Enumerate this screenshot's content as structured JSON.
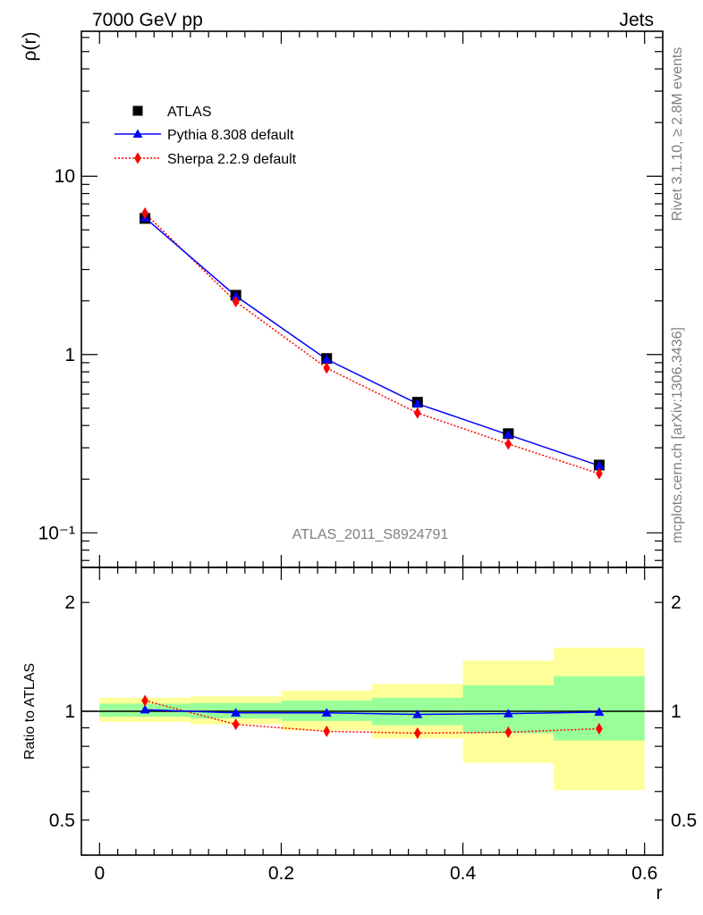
{
  "header": {
    "left": "7000 GeV pp",
    "right": "Jets"
  },
  "side_labels": {
    "rivet": "Rivet 3.1.10, ≥ 2.8M events",
    "url": "mcplots.cern.ch [arXiv:1306.3436]"
  },
  "watermark": "ATLAS_2011_S8924791",
  "chart_data": {
    "type": "line",
    "x_label": "r",
    "xlim": [
      -0.02,
      0.62
    ],
    "x_ticks": [
      {
        "v": 0,
        "label": "0"
      },
      {
        "v": 0.2,
        "label": "0.2"
      },
      {
        "v": 0.4,
        "label": "0.4"
      },
      {
        "v": 0.6,
        "label": "0.6"
      }
    ],
    "main": {
      "ylabel": "ρ(r)",
      "y_scale": "log",
      "ylim": [
        0.064,
        65
      ],
      "y_ticks": [
        {
          "v": 10,
          "label": "10"
        },
        {
          "v": 1,
          "label": "1"
        },
        {
          "v": 0.1,
          "label": "10⁻¹"
        }
      ],
      "x": [
        0.05,
        0.15,
        0.25,
        0.35,
        0.45,
        0.55
      ],
      "series": [
        {
          "name": "ATLAS",
          "style": "data",
          "color": "#000000",
          "marker": "square",
          "values": [
            5.8,
            2.15,
            0.95,
            0.54,
            0.36,
            0.24
          ]
        },
        {
          "name": "Pythia 8.308 default",
          "style": "solid",
          "color": "#0000ff",
          "marker": "triangle",
          "values": [
            5.85,
            2.13,
            0.94,
            0.53,
            0.355,
            0.238
          ]
        },
        {
          "name": "Sherpa 2.2.9 default",
          "style": "dotted",
          "color": "#ff0000",
          "marker": "diamond",
          "values": [
            6.2,
            1.98,
            0.84,
            0.47,
            0.315,
            0.215
          ]
        }
      ]
    },
    "ratio": {
      "ylabel": "Ratio to ATLAS",
      "y_scale": "log",
      "ylim": [
        0.4,
        2.5
      ],
      "y_ticks": [
        {
          "v": 2,
          "label": "2"
        },
        {
          "v": 1,
          "label": "1"
        },
        {
          "v": 0.5,
          "label": "0.5"
        }
      ],
      "bins": [
        [
          0,
          0.1
        ],
        [
          0.1,
          0.2
        ],
        [
          0.2,
          0.3
        ],
        [
          0.3,
          0.4
        ],
        [
          0.4,
          0.5
        ],
        [
          0.5,
          0.6
        ]
      ],
      "band_outer": [
        [
          0.935,
          1.09
        ],
        [
          0.92,
          1.1
        ],
        [
          0.885,
          1.14
        ],
        [
          0.84,
          1.19
        ],
        [
          0.72,
          1.38
        ],
        [
          0.605,
          1.5
        ]
      ],
      "band_inner": [
        [
          0.965,
          1.05
        ],
        [
          0.955,
          1.055
        ],
        [
          0.94,
          1.07
        ],
        [
          0.915,
          1.09
        ],
        [
          0.87,
          1.18
        ],
        [
          0.83,
          1.25
        ]
      ],
      "colors": {
        "outer": "#ffff99",
        "inner": "#99ff99"
      },
      "series": [
        {
          "name": "Pythia 8.308 default",
          "color": "#0000ff",
          "marker": "triangle",
          "style": "solid",
          "values": [
            1.01,
            0.99,
            0.99,
            0.98,
            0.985,
            0.995
          ]
        },
        {
          "name": "Sherpa 2.2.9 default",
          "color": "#ff0000",
          "marker": "diamond",
          "style": "dotted",
          "values": [
            1.07,
            0.92,
            0.88,
            0.87,
            0.875,
            0.895
          ]
        }
      ]
    }
  }
}
